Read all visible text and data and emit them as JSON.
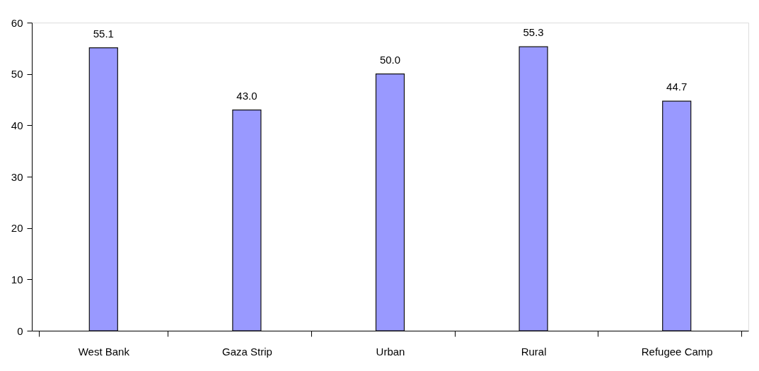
{
  "chart_data": {
    "type": "bar",
    "categories": [
      "West Bank",
      "Gaza Strip",
      "Urban",
      "Rural",
      "Refugee Camp"
    ],
    "values": [
      55.1,
      43.0,
      50.0,
      55.3,
      44.7
    ],
    "value_labels": [
      "55.1",
      "43.0",
      "50.0",
      "55.3",
      "44.7"
    ],
    "color": "#9999ff",
    "ylim": [
      0,
      60
    ],
    "yticks": [
      0,
      10,
      20,
      30,
      40,
      50,
      60
    ],
    "grid": false
  }
}
